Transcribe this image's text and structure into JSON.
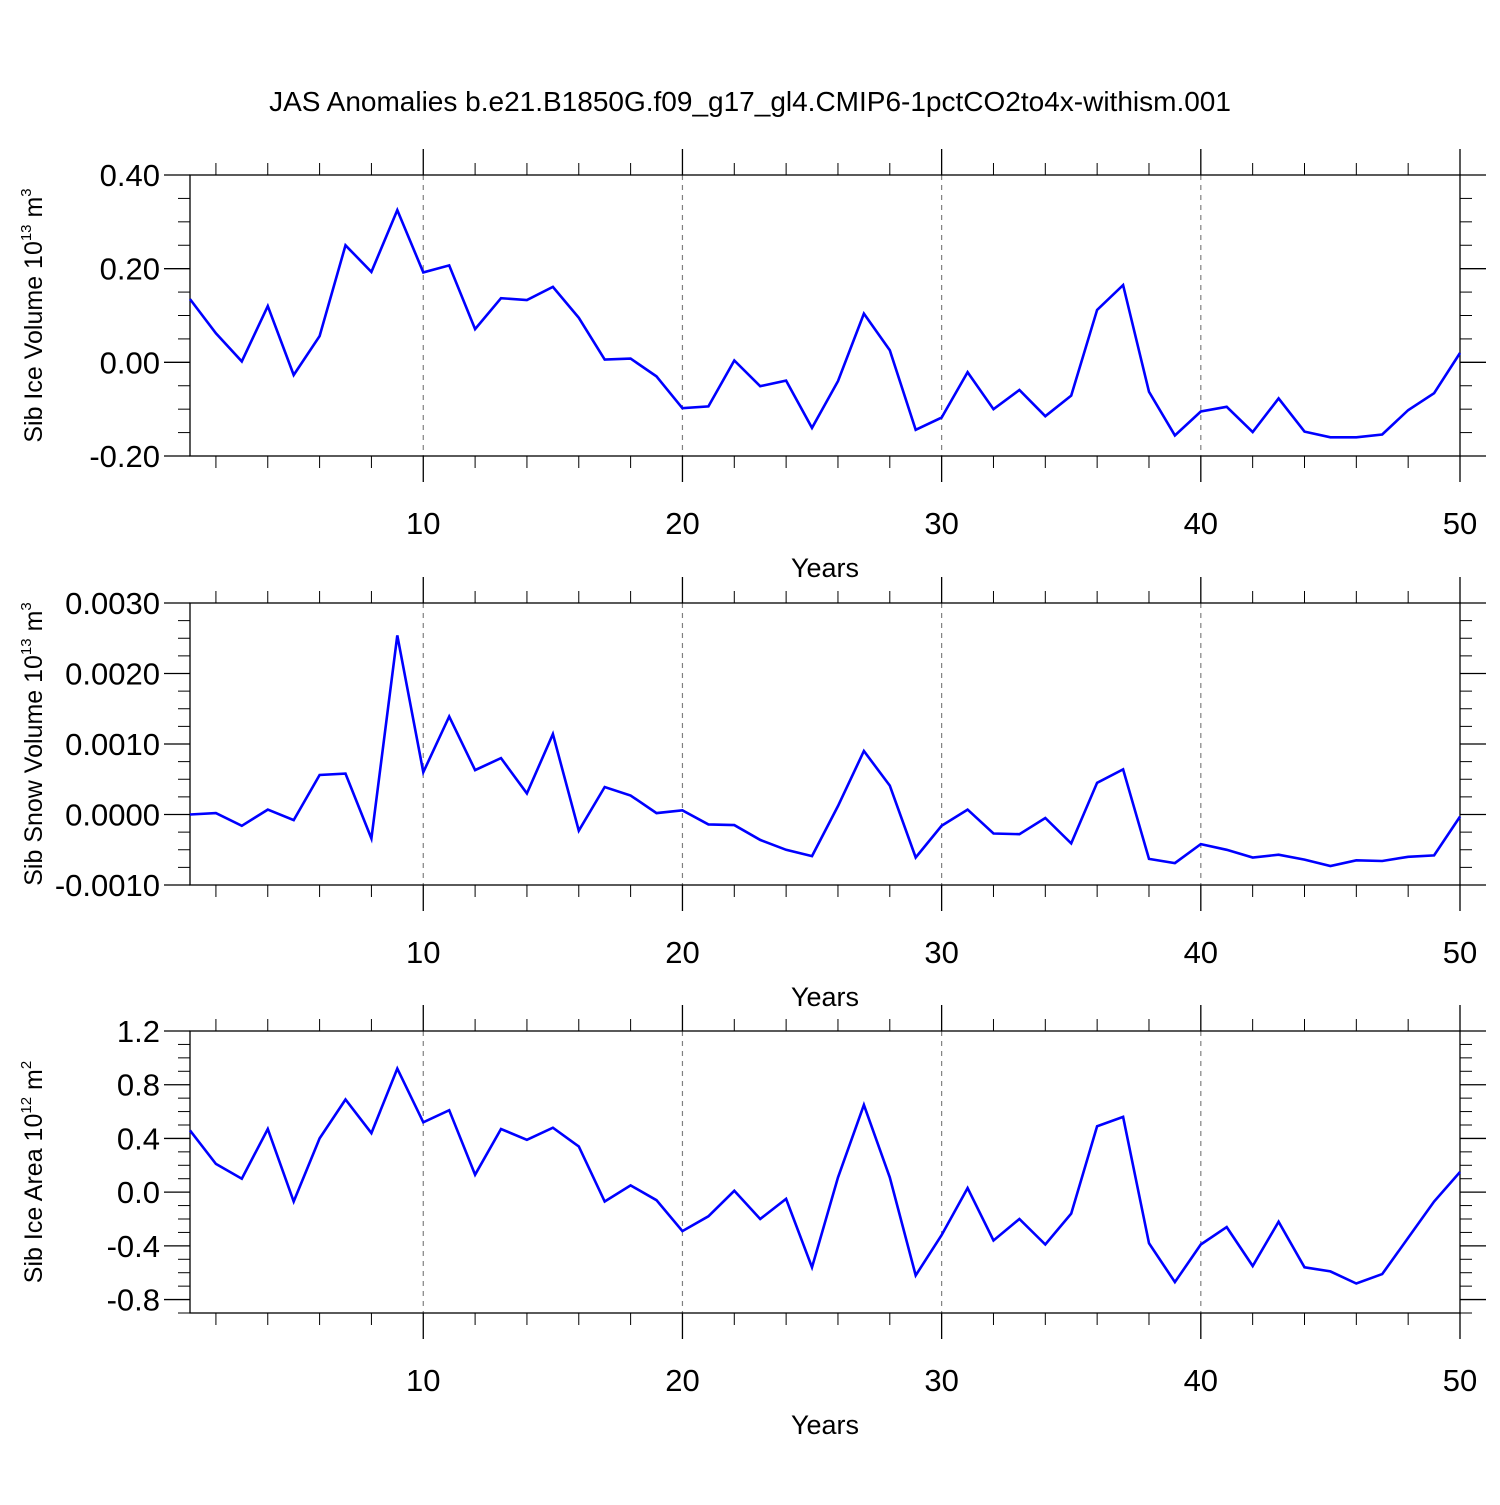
{
  "title": "JAS Anomalies b.e21.B1850G.f09_g17_gl4.CMIP6-1pctCO2to4x-withism.001",
  "colors": {
    "line": "#0000ff",
    "axis": "#000000",
    "grid": "#808080"
  },
  "chart_data": [
    {
      "type": "line",
      "title": "",
      "xlabel": "Years",
      "ylabel_main": "Sib Ice Volume 10",
      "ylabel_sup": "13",
      "ylabel_unit": " m",
      "ylabel_unit_sup": "3",
      "xlim": [
        1,
        50
      ],
      "ylim": [
        -0.2,
        0.4
      ],
      "yticks": [
        -0.2,
        0.0,
        0.2,
        0.4
      ],
      "ytick_labels": [
        "-0.20",
        "0.00",
        "0.20",
        "0.40"
      ],
      "yminor": [
        -0.15,
        -0.1,
        -0.05,
        0.05,
        0.1,
        0.15,
        0.25,
        0.3,
        0.35
      ],
      "xticks": [
        10,
        20,
        30,
        40,
        50
      ],
      "xtick_labels": [
        "10",
        "20",
        "30",
        "40",
        "50"
      ],
      "grid": "vertical dashed at major x ticks",
      "x": [
        1,
        2,
        3,
        4,
        5,
        6,
        7,
        8,
        9,
        10,
        11,
        12,
        13,
        14,
        15,
        16,
        17,
        18,
        19,
        20,
        21,
        22,
        23,
        24,
        25,
        26,
        27,
        28,
        29,
        30,
        31,
        32,
        33,
        34,
        35,
        36,
        37,
        38,
        39,
        40,
        41,
        42,
        43,
        44,
        45,
        46,
        47,
        48,
        49,
        50
      ],
      "series": [
        {
          "values": [
            0.135,
            0.062,
            0.002,
            0.12,
            -0.027,
            0.056,
            0.25,
            0.193,
            0.325,
            0.192,
            0.207,
            0.071,
            0.137,
            0.133,
            0.161,
            0.095,
            0.006,
            0.008,
            -0.03,
            -0.098,
            -0.094,
            0.004,
            -0.051,
            -0.039,
            -0.14,
            -0.04,
            0.104,
            0.026,
            -0.144,
            -0.118,
            -0.021,
            -0.1,
            -0.059,
            -0.115,
            -0.071,
            0.112,
            0.165,
            -0.063,
            -0.156,
            -0.105,
            -0.095,
            -0.149,
            -0.077,
            -0.148,
            -0.16,
            -0.16,
            -0.154,
            -0.102,
            -0.066,
            0.02
          ]
        }
      ]
    },
    {
      "type": "line",
      "title": "",
      "xlabel": "Years",
      "ylabel_main": "Sib Snow Volume 10",
      "ylabel_sup": "13",
      "ylabel_unit": " m",
      "ylabel_unit_sup": "3",
      "xlim": [
        1,
        50
      ],
      "ylim": [
        -0.001,
        0.003
      ],
      "yticks": [
        -0.001,
        0.0,
        0.001,
        0.002,
        0.003
      ],
      "ytick_labels": [
        "-0.0010",
        "0.0000",
        "0.0010",
        "0.0020",
        "0.0030"
      ],
      "yminor": [
        -0.00075,
        -0.0005,
        -0.00025,
        0.00025,
        0.0005,
        0.00075,
        0.00125,
        0.0015,
        0.00175,
        0.00225,
        0.0025,
        0.00275
      ],
      "xticks": [
        10,
        20,
        30,
        40,
        50
      ],
      "xtick_labels": [
        "10",
        "20",
        "30",
        "40",
        "50"
      ],
      "grid": "vertical dashed at major x ticks",
      "x": [
        1,
        2,
        3,
        4,
        5,
        6,
        7,
        8,
        9,
        10,
        11,
        12,
        13,
        14,
        15,
        16,
        17,
        18,
        19,
        20,
        21,
        22,
        23,
        24,
        25,
        26,
        27,
        28,
        29,
        30,
        31,
        32,
        33,
        34,
        35,
        36,
        37,
        38,
        39,
        40,
        41,
        42,
        43,
        44,
        45,
        46,
        47,
        48,
        49,
        50
      ],
      "series": [
        {
          "values": [
            0.0,
            2e-05,
            -0.00016,
            7e-05,
            -8e-05,
            0.00056,
            0.00058,
            -0.00034,
            0.00254,
            0.0006,
            0.00139,
            0.00063,
            0.0008,
            0.0003,
            0.00114,
            -0.00023,
            0.00039,
            0.00027,
            2e-05,
            6e-05,
            -0.00014,
            -0.00015,
            -0.00036,
            -0.0005,
            -0.00059,
            0.00012,
            0.0009,
            0.00041,
            -0.00061,
            -0.00016,
            7e-05,
            -0.00027,
            -0.00028,
            -5e-05,
            -0.00041,
            0.00045,
            0.00064,
            -0.00063,
            -0.00069,
            -0.00042,
            -0.0005,
            -0.00061,
            -0.00057,
            -0.00064,
            -0.00073,
            -0.00065,
            -0.00066,
            -0.0006,
            -0.00058,
            -3e-05
          ]
        }
      ]
    },
    {
      "type": "line",
      "title": "",
      "xlabel": "Years",
      "ylabel_main": "Sib Ice Area 10",
      "ylabel_sup": "12",
      "ylabel_unit": " m",
      "ylabel_unit_sup": "2",
      "xlim": [
        1,
        50
      ],
      "ylim": [
        -0.9,
        1.2
      ],
      "yticks": [
        -0.8,
        -0.4,
        0.0,
        0.4,
        0.8,
        1.2
      ],
      "ytick_labels": [
        "-0.8",
        "-0.4",
        "0.0",
        "0.4",
        "0.8",
        "1.2"
      ],
      "yminor": [
        -0.9,
        -0.7,
        -0.6,
        -0.5,
        -0.3,
        -0.2,
        -0.1,
        0.1,
        0.2,
        0.3,
        0.5,
        0.6,
        0.7,
        0.9,
        1.0,
        1.1
      ],
      "xticks": [
        10,
        20,
        30,
        40,
        50
      ],
      "xtick_labels": [
        "10",
        "20",
        "30",
        "40",
        "50"
      ],
      "grid": "vertical dashed at major x ticks",
      "x": [
        1,
        2,
        3,
        4,
        5,
        6,
        7,
        8,
        9,
        10,
        11,
        12,
        13,
        14,
        15,
        16,
        17,
        18,
        19,
        20,
        21,
        22,
        23,
        24,
        25,
        26,
        27,
        28,
        29,
        30,
        31,
        32,
        33,
        34,
        35,
        36,
        37,
        38,
        39,
        40,
        41,
        42,
        43,
        44,
        45,
        46,
        47,
        48,
        49,
        50
      ],
      "series": [
        {
          "values": [
            0.46,
            0.21,
            0.1,
            0.47,
            -0.07,
            0.4,
            0.69,
            0.44,
            0.92,
            0.52,
            0.61,
            0.13,
            0.47,
            0.39,
            0.48,
            0.34,
            -0.07,
            0.05,
            -0.06,
            -0.29,
            -0.18,
            0.01,
            -0.2,
            -0.05,
            -0.56,
            0.11,
            0.65,
            0.11,
            -0.62,
            -0.32,
            0.03,
            -0.36,
            -0.2,
            -0.39,
            -0.16,
            0.49,
            0.56,
            -0.38,
            -0.67,
            -0.39,
            -0.26,
            -0.55,
            -0.22,
            -0.56,
            -0.59,
            -0.68,
            -0.61,
            -0.34,
            -0.07,
            0.15
          ]
        }
      ]
    }
  ]
}
